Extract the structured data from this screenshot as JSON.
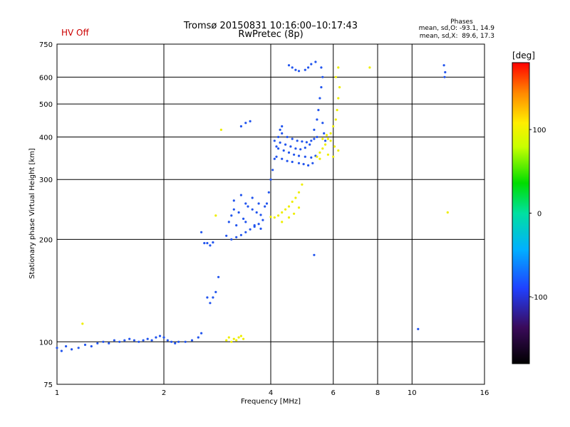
{
  "chart_data": {
    "type": "scatter",
    "title": "Tromsø 20150831 10:16:00–10:17:43",
    "subtitle": "RwPretec (8p)",
    "status_label": "HV Off",
    "phases_block": {
      "heading": "Phases",
      "line_o": "mean, sd,O: -93.1, 14.9",
      "line_x": "mean, sd,X:  89.6, 17.3"
    },
    "xlabel": "Frequency [MHz]",
    "ylabel": "Stationary phase Virtual Height [km]",
    "x_scale": "log",
    "y_scale": "log",
    "xlim": [
      1,
      16
    ],
    "ylim": [
      75,
      750
    ],
    "x_ticks": [
      1,
      2,
      4,
      6,
      8,
      10,
      16
    ],
    "y_ticks": [
      75,
      100,
      200,
      300,
      400,
      500,
      600,
      750
    ],
    "grid": true,
    "colorbar": {
      "label": "[deg]",
      "range": [
        -180,
        180
      ],
      "ticks": [
        100,
        0,
        -100
      ]
    },
    "colors": {
      "o_mode": "#2255ee",
      "x_mode": "#eeee00",
      "hv_off": "#cc0000"
    },
    "series": [
      {
        "mode": "o",
        "color": "#2255ee",
        "points": [
          [
            1.0,
            96
          ],
          [
            1.03,
            94
          ],
          [
            1.06,
            97
          ],
          [
            1.1,
            95
          ],
          [
            1.15,
            96
          ],
          [
            1.2,
            98
          ],
          [
            1.25,
            97
          ],
          [
            1.3,
            99
          ],
          [
            1.35,
            100
          ],
          [
            1.4,
            99
          ],
          [
            1.45,
            101
          ],
          [
            1.5,
            100
          ],
          [
            1.55,
            101
          ],
          [
            1.6,
            102
          ],
          [
            1.65,
            101
          ],
          [
            1.7,
            100
          ],
          [
            1.75,
            101
          ],
          [
            1.8,
            102
          ],
          [
            1.85,
            101
          ],
          [
            1.9,
            103
          ],
          [
            1.95,
            104
          ],
          [
            2.0,
            103
          ],
          [
            2.05,
            101
          ],
          [
            2.1,
            100
          ],
          [
            2.15,
            99
          ],
          [
            2.2,
            100
          ],
          [
            2.3,
            100
          ],
          [
            2.4,
            101
          ],
          [
            2.5,
            103
          ],
          [
            2.55,
            106
          ],
          [
            2.55,
            210
          ],
          [
            2.6,
            195
          ],
          [
            2.65,
            195
          ],
          [
            2.7,
            192
          ],
          [
            2.75,
            196
          ],
          [
            2.65,
            135
          ],
          [
            2.7,
            130
          ],
          [
            2.75,
            135
          ],
          [
            2.8,
            140
          ],
          [
            2.85,
            155
          ],
          [
            3.0,
            205
          ],
          [
            3.1,
            200
          ],
          [
            3.2,
            203
          ],
          [
            3.3,
            206
          ],
          [
            3.4,
            210
          ],
          [
            3.5,
            214
          ],
          [
            3.6,
            218
          ],
          [
            3.7,
            222
          ],
          [
            3.8,
            228
          ],
          [
            3.05,
            225
          ],
          [
            3.1,
            235
          ],
          [
            3.15,
            245
          ],
          [
            3.25,
            240
          ],
          [
            3.35,
            230
          ],
          [
            3.45,
            250
          ],
          [
            3.55,
            245
          ],
          [
            3.65,
            240
          ],
          [
            3.75,
            236
          ],
          [
            3.15,
            260
          ],
          [
            3.3,
            270
          ],
          [
            3.4,
            255
          ],
          [
            3.55,
            265
          ],
          [
            3.7,
            255
          ],
          [
            3.85,
            250
          ],
          [
            3.2,
            220
          ],
          [
            3.4,
            225
          ],
          [
            3.6,
            220
          ],
          [
            3.75,
            215
          ],
          [
            3.3,
            430
          ],
          [
            3.4,
            440
          ],
          [
            3.5,
            445
          ],
          [
            3.9,
            255
          ],
          [
            3.95,
            275
          ],
          [
            4.0,
            300
          ],
          [
            4.05,
            320
          ],
          [
            4.1,
            345
          ],
          [
            4.15,
            375
          ],
          [
            4.2,
            400
          ],
          [
            4.25,
            420
          ],
          [
            4.3,
            430
          ],
          [
            4.1,
            390
          ],
          [
            4.25,
            385
          ],
          [
            4.4,
            380
          ],
          [
            4.55,
            375
          ],
          [
            4.7,
            370
          ],
          [
            4.85,
            368
          ],
          [
            5.0,
            372
          ],
          [
            5.15,
            380
          ],
          [
            5.3,
            395
          ],
          [
            4.15,
            350
          ],
          [
            4.3,
            345
          ],
          [
            4.45,
            340
          ],
          [
            4.6,
            338
          ],
          [
            4.8,
            335
          ],
          [
            4.95,
            333
          ],
          [
            5.1,
            330
          ],
          [
            5.25,
            335
          ],
          [
            4.2,
            370
          ],
          [
            4.35,
            365
          ],
          [
            4.5,
            360
          ],
          [
            4.65,
            355
          ],
          [
            4.8,
            352
          ],
          [
            5.0,
            350
          ],
          [
            5.2,
            348
          ],
          [
            5.35,
            352
          ],
          [
            4.3,
            410
          ],
          [
            4.45,
            400
          ],
          [
            4.6,
            395
          ],
          [
            4.75,
            390
          ],
          [
            4.9,
            388
          ],
          [
            5.05,
            386
          ],
          [
            5.2,
            390
          ],
          [
            5.4,
            400
          ],
          [
            5.3,
            420
          ],
          [
            5.4,
            450
          ],
          [
            5.45,
            480
          ],
          [
            5.5,
            520
          ],
          [
            5.55,
            560
          ],
          [
            5.6,
            600
          ],
          [
            5.55,
            640
          ],
          [
            4.5,
            650
          ],
          [
            4.6,
            640
          ],
          [
            4.7,
            630
          ],
          [
            4.8,
            625
          ],
          [
            5.0,
            630
          ],
          [
            5.1,
            640
          ],
          [
            5.2,
            655
          ],
          [
            5.35,
            665
          ],
          [
            5.6,
            440
          ],
          [
            5.65,
            410
          ],
          [
            5.7,
            390
          ],
          [
            5.3,
            180
          ],
          [
            10.4,
            109
          ],
          [
            12.3,
            650
          ],
          [
            12.35,
            600
          ],
          [
            12.4,
            620
          ]
        ]
      },
      {
        "mode": "x",
        "color": "#eeee00",
        "points": [
          [
            1.18,
            113
          ],
          [
            2.8,
            235
          ],
          [
            2.9,
            420
          ],
          [
            3.0,
            101
          ],
          [
            3.05,
            103
          ],
          [
            3.1,
            100
          ],
          [
            3.15,
            102
          ],
          [
            3.2,
            101
          ],
          [
            3.25,
            103
          ],
          [
            3.3,
            104
          ],
          [
            3.35,
            102
          ],
          [
            4.0,
            233
          ],
          [
            4.1,
            232
          ],
          [
            4.2,
            235
          ],
          [
            4.3,
            240
          ],
          [
            4.4,
            245
          ],
          [
            4.5,
            250
          ],
          [
            4.6,
            258
          ],
          [
            4.7,
            265
          ],
          [
            4.8,
            275
          ],
          [
            4.9,
            290
          ],
          [
            4.3,
            225
          ],
          [
            4.5,
            232
          ],
          [
            4.65,
            238
          ],
          [
            4.8,
            248
          ],
          [
            5.4,
            350
          ],
          [
            5.5,
            360
          ],
          [
            5.6,
            370
          ],
          [
            5.7,
            380
          ],
          [
            5.8,
            395
          ],
          [
            5.9,
            410
          ],
          [
            6.0,
            430
          ],
          [
            6.1,
            450
          ],
          [
            6.15,
            480
          ],
          [
            6.2,
            520
          ],
          [
            6.25,
            560
          ],
          [
            5.6,
            395
          ],
          [
            5.75,
            405
          ],
          [
            5.9,
            390
          ],
          [
            6.05,
            375
          ],
          [
            6.2,
            365
          ],
          [
            5.5,
            345
          ],
          [
            5.8,
            355
          ],
          [
            6.0,
            350
          ],
          [
            6.1,
            600
          ],
          [
            6.2,
            640
          ],
          [
            7.6,
            640
          ],
          [
            12.6,
            240
          ]
        ]
      }
    ]
  }
}
